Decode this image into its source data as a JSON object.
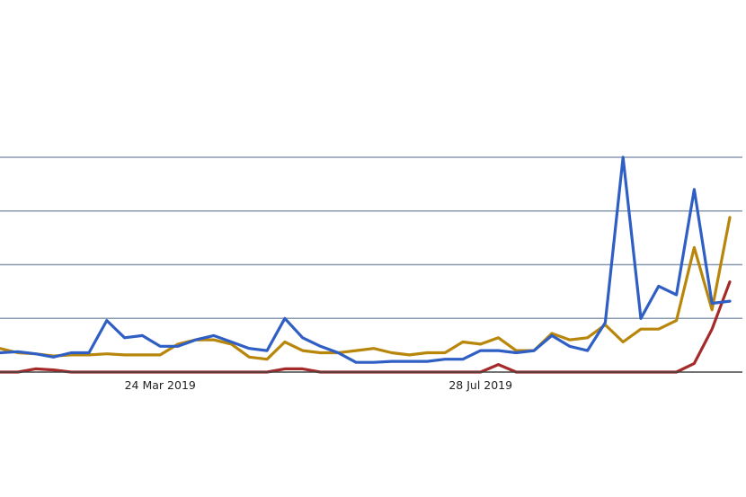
{
  "chart_data": {
    "type": "line",
    "title": "",
    "xlabel": "",
    "ylabel": "",
    "ylim": [
      0,
      100
    ],
    "ygrid": [
      25,
      50,
      75,
      100
    ],
    "grid": true,
    "legend": "none",
    "x_ticks": [
      {
        "index": 9,
        "label": "24 Mar 2019"
      },
      {
        "index": 27,
        "label": "28 Jul 2019"
      }
    ],
    "series": [
      {
        "color": "#2f5fc4",
        "values": [
          9,
          9.5,
          8.5,
          7,
          9,
          9,
          24,
          16,
          17,
          12,
          12,
          15,
          17,
          14,
          11,
          10,
          25,
          16,
          12,
          9,
          4.5,
          4.5,
          5,
          5,
          5,
          6,
          6,
          10,
          10,
          9,
          10,
          17,
          12,
          10,
          23,
          100,
          25,
          40,
          36,
          85,
          32,
          33
        ]
      },
      {
        "color": "#b8860b",
        "values": [
          11,
          9,
          8.5,
          7.5,
          8,
          8,
          8.5,
          8,
          8,
          8,
          13,
          15,
          15,
          13,
          7,
          6,
          14,
          10,
          9,
          9,
          10,
          11,
          9,
          8,
          9,
          9,
          14,
          13,
          16,
          10,
          10,
          18,
          15,
          16,
          22,
          14,
          20,
          20,
          24,
          58,
          29,
          72
        ]
      },
      {
        "color": "#a52a2a",
        "values": [
          0,
          0,
          1.5,
          1,
          0,
          0,
          0,
          0,
          0,
          0,
          0,
          0,
          0,
          0,
          0,
          0,
          1.5,
          1.5,
          0,
          0,
          0,
          0,
          0,
          0,
          0,
          0,
          0,
          0,
          3.5,
          0,
          0,
          0,
          0,
          0,
          0,
          0,
          0,
          0,
          0,
          4,
          20,
          42
        ]
      }
    ]
  }
}
